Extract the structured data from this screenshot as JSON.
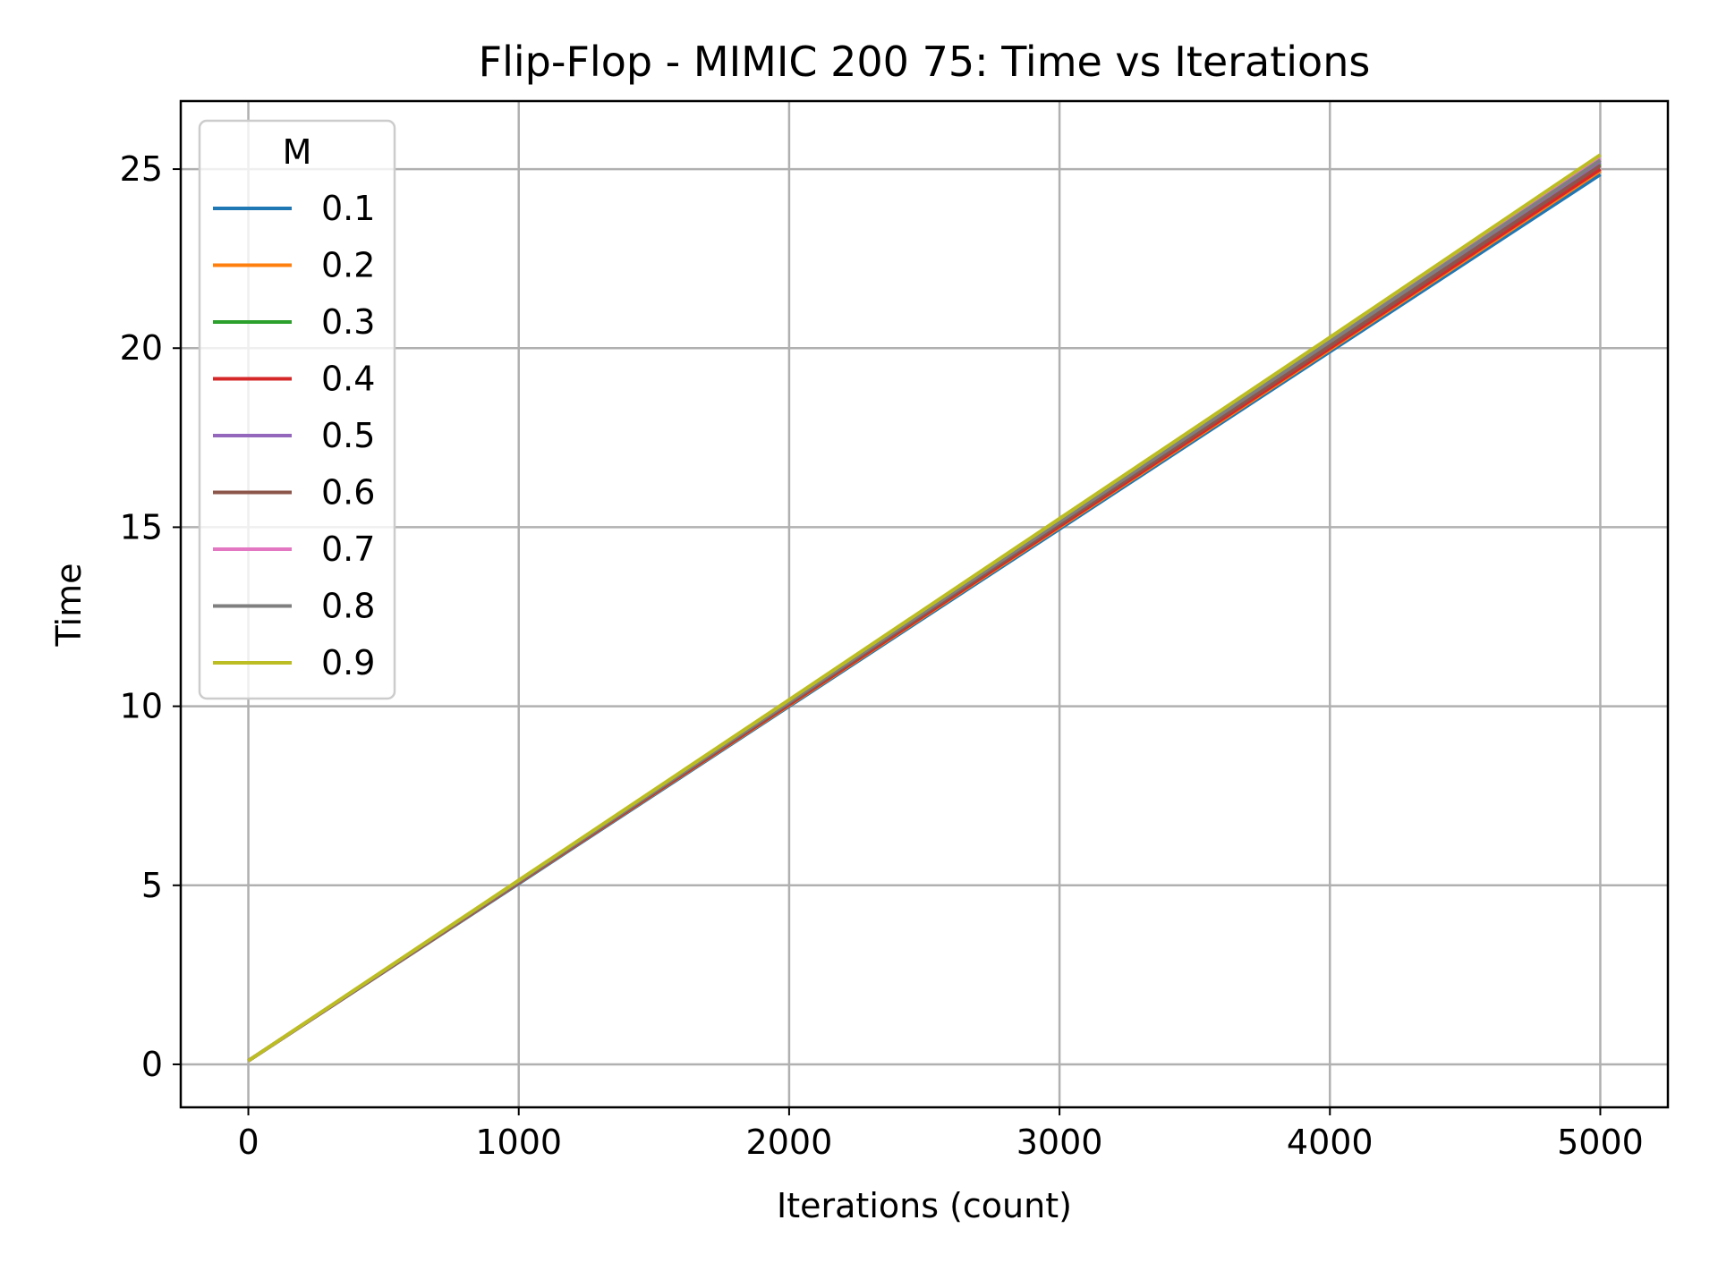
{
  "chart_data": {
    "type": "line",
    "title": "Flip-Flop - MIMIC 200 75: Time vs Iterations",
    "xlabel": "Iterations (count)",
    "ylabel": "Time",
    "xlim": [
      -250,
      5250
    ],
    "ylim": [
      -1.2,
      26.9
    ],
    "xticks": [
      0,
      1000,
      2000,
      3000,
      4000,
      5000
    ],
    "yticks": [
      0,
      5,
      10,
      15,
      20,
      25
    ],
    "grid": true,
    "legend": {
      "title": "M",
      "placement": "top-left"
    },
    "x": [
      0,
      1000,
      2000,
      3000,
      4000,
      5000
    ],
    "series": [
      {
        "name": "0.1",
        "color": "#1f77b4",
        "values": [
          0.1,
          5.05,
          10.0,
          14.95,
          19.9,
          24.85
        ]
      },
      {
        "name": "0.2",
        "color": "#ff7f0e",
        "values": [
          0.1,
          5.07,
          10.03,
          15.0,
          19.96,
          24.95
        ]
      },
      {
        "name": "0.3",
        "color": "#2ca02c",
        "values": [
          0.1,
          5.1,
          10.1,
          15.1,
          20.1,
          25.15
        ]
      },
      {
        "name": "0.4",
        "color": "#d62728",
        "values": [
          0.1,
          5.08,
          10.05,
          15.03,
          20.0,
          25.0
        ]
      },
      {
        "name": "0.5",
        "color": "#9467bd",
        "values": [
          0.1,
          5.1,
          10.1,
          15.12,
          20.15,
          25.2
        ]
      },
      {
        "name": "0.6",
        "color": "#8c564b",
        "values": [
          0.1,
          5.09,
          10.08,
          15.08,
          20.07,
          25.1
        ]
      },
      {
        "name": "0.7",
        "color": "#e377c2",
        "values": [
          0.1,
          5.12,
          10.15,
          15.18,
          20.22,
          25.3
        ]
      },
      {
        "name": "0.8",
        "color": "#7f7f7f",
        "values": [
          0.1,
          5.11,
          10.12,
          15.15,
          20.18,
          25.25
        ]
      },
      {
        "name": "0.9",
        "color": "#bcbd22",
        "values": [
          0.1,
          5.14,
          10.18,
          15.24,
          20.3,
          25.4
        ]
      }
    ]
  }
}
